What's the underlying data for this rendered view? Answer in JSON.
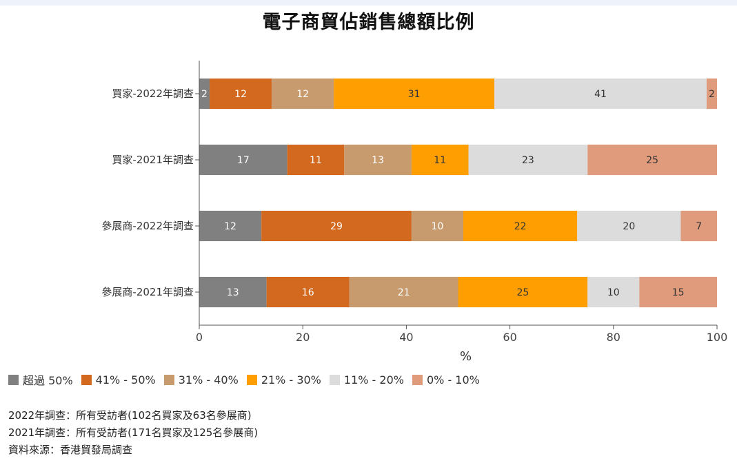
{
  "title": "電子商貿佔銷售總額比例",
  "chart_data": {
    "type": "bar",
    "orientation": "horizontal",
    "stacked": true,
    "title": "電子商貿佔銷售總額比例",
    "xlabel": "%",
    "ylabel": "",
    "xlim": [
      0,
      100
    ],
    "xticks": [
      0,
      20,
      40,
      60,
      80,
      100
    ],
    "categories": [
      "買家-2022年調查",
      "買家-2021年調查",
      "參展商-2022年調查",
      "參展商-2021年調查"
    ],
    "series": [
      {
        "name": "超過 50%",
        "color": "#808080",
        "label_color": "#ffffff",
        "values": [
          2,
          17,
          12,
          13
        ]
      },
      {
        "name": "41% - 50%",
        "color": "#d2691e",
        "label_color": "#ffffff",
        "values": [
          12,
          11,
          29,
          16
        ]
      },
      {
        "name": "31% - 40%",
        "color": "#c89b6e",
        "label_color": "#ffffff",
        "values": [
          12,
          13,
          10,
          21
        ]
      },
      {
        "name": "21% - 30%",
        "color": "#ff9e00",
        "label_color": "#333333",
        "values": [
          31,
          11,
          22,
          25
        ]
      },
      {
        "name": "11% - 20%",
        "color": "#dcdcdc",
        "label_color": "#333333",
        "values": [
          41,
          23,
          20,
          10
        ]
      },
      {
        "name": "0% - 10%",
        "color": "#e09b7c",
        "label_color": "#333333",
        "values": [
          2,
          25,
          7,
          15
        ]
      }
    ],
    "legend_position": "bottom-left",
    "grid": false
  },
  "footnotes": [
    "2022年調查：所有受訪者(102名買家及63名參展商)",
    "2021年調查：所有受訪者(171名買家及125名參展商)",
    "資料來源：香港貿發局調查"
  ]
}
